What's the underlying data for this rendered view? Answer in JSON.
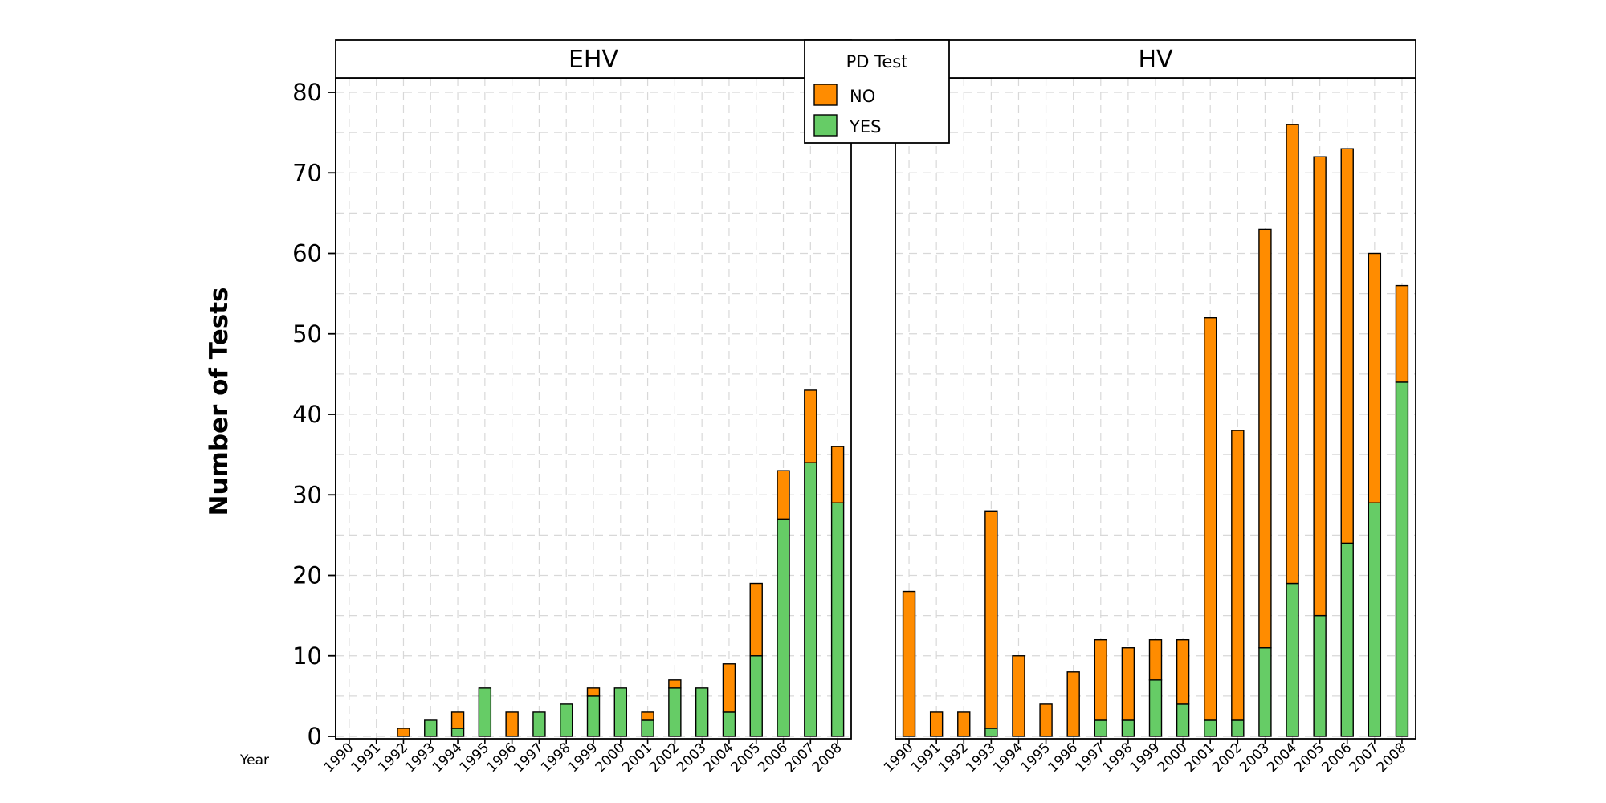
{
  "chart_data": {
    "type": "bar",
    "stacked": true,
    "ylabel": "Number of Tests",
    "x_caption": "Year",
    "ylim": [
      0,
      80
    ],
    "yticks": [
      0,
      10,
      20,
      30,
      40,
      50,
      60,
      70,
      80
    ],
    "grid": true,
    "legend": {
      "title": "PD Test",
      "placement": "top-center",
      "entries": [
        {
          "name": "NO",
          "color": "#ff8c00"
        },
        {
          "name": "YES",
          "color": "#66cc66"
        }
      ]
    },
    "series_order": [
      "YES",
      "NO"
    ],
    "panels": [
      {
        "label": "EHV",
        "categories": [
          "1990",
          "1991",
          "1992",
          "1993",
          "1994",
          "1995",
          "1996",
          "1997",
          "1998",
          "1999",
          "2000",
          "2001",
          "2002",
          "2003",
          "2004",
          "2005",
          "2006",
          "2007",
          "2008"
        ],
        "series": [
          {
            "name": "YES",
            "values": [
              0,
              0,
              0,
              2,
              1,
              6,
              0,
              3,
              4,
              5,
              6,
              2,
              6,
              6,
              3,
              10,
              27,
              34,
              29
            ]
          },
          {
            "name": "NO",
            "values": [
              0,
              0,
              1,
              0,
              2,
              0,
              3,
              0,
              0,
              1,
              0,
              1,
              1,
              0,
              6,
              9,
              6,
              9,
              7
            ]
          }
        ]
      },
      {
        "label": "HV",
        "categories": [
          "1990",
          "1991",
          "1992",
          "1993",
          "1994",
          "1995",
          "1996",
          "1997",
          "1998",
          "1999",
          "2000",
          "2001",
          "2002",
          "2003",
          "2004",
          "2005",
          "2006",
          "2007",
          "2008"
        ],
        "series": [
          {
            "name": "YES",
            "values": [
              0,
              0,
              0,
              1,
              0,
              0,
              0,
              2,
              2,
              7,
              4,
              2,
              2,
              11,
              19,
              15,
              24,
              29,
              44
            ]
          },
          {
            "name": "NO",
            "values": [
              18,
              3,
              3,
              27,
              10,
              4,
              8,
              10,
              9,
              5,
              8,
              50,
              36,
              52,
              57,
              57,
              49,
              31,
              12
            ]
          }
        ]
      }
    ],
    "colors": {
      "NO": "#ff8c00",
      "YES": "#66cc66"
    }
  }
}
